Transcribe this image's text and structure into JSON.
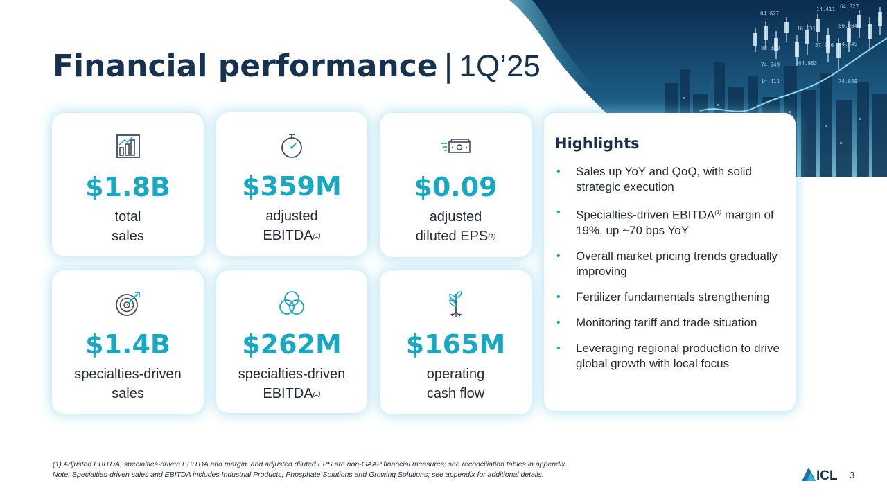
{
  "title": {
    "main": "Financial performance",
    "separator": "|",
    "period": "1Q’25"
  },
  "cards": [
    {
      "value": "$1.8B",
      "label_lines": [
        "total",
        "sales"
      ],
      "note": "",
      "icon": "bar-chart-icon"
    },
    {
      "value": "$359M",
      "label_lines": [
        "adjusted",
        "EBITDA"
      ],
      "note": "(1)",
      "icon": "stopwatch-icon"
    },
    {
      "value": "$0.09",
      "label_lines": [
        "adjusted",
        "diluted EPS"
      ],
      "note": "(1)",
      "icon": "cash-icon"
    },
    {
      "value": "$1.4B",
      "label_lines": [
        "specialties-driven",
        "sales"
      ],
      "note": "",
      "icon": "target-icon"
    },
    {
      "value": "$262M",
      "label_lines": [
        "specialties-driven",
        "EBITDA"
      ],
      "note": "(1)",
      "icon": "venn-circles-icon"
    },
    {
      "value": "$165M",
      "label_lines": [
        "operating",
        "cash flow"
      ],
      "note": "",
      "icon": "seedling-icon"
    }
  ],
  "highlights": {
    "heading": "Highlights",
    "items": [
      {
        "text": "Sales up YoY and QoQ, with solid strategic execution",
        "after": "",
        "note": ""
      },
      {
        "text": "Specialties-driven EBITDA",
        "note": "(1)",
        "after": " margin of 19%, up ~70 bps YoY"
      },
      {
        "text": "Overall market pricing trends gradually improving",
        "note": "",
        "after": ""
      },
      {
        "text": "Fertilizer fundamentals strengthening",
        "note": "",
        "after": ""
      },
      {
        "text": "Monitoring tariff and trade situation",
        "note": "",
        "after": ""
      },
      {
        "text": "Leveraging regional production to drive global growth with local focus",
        "note": "",
        "after": ""
      }
    ]
  },
  "footnotes": [
    "(1) Adjusted EBITDA, specialties-driven EBITDA and margin, and adjusted diluted EPS are non-GAAP financial measures; see reconciliation tables in appendix.",
    "Note: Specialties-driven sales and EBITDA includes Industrial Products, Phosphate Solutions and Growing Solutions; see appendix for additional details."
  ],
  "logo_text": "ICL",
  "page_number": "3",
  "hero_numbers": [
    "64.827",
    "14.411",
    "64.827",
    "10.531",
    "50.084",
    "88.380",
    "57.086",
    "74.849",
    "74.849",
    "64.963",
    "14.411",
    "74.849"
  ],
  "colors": {
    "accent": "#19a8c4",
    "title": "#16324f",
    "glow": "#78cde6"
  }
}
